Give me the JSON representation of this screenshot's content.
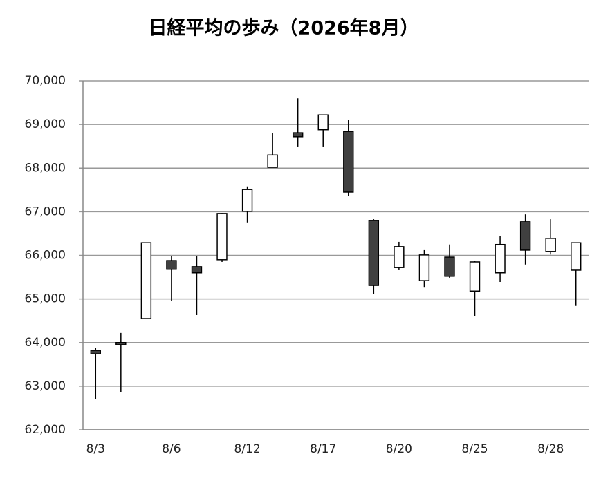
{
  "chart_data": {
    "type": "candlestick",
    "title": "日経平均の歩み（2026年8月）",
    "categories": [
      "8/3",
      null,
      null,
      "8/6",
      null,
      null,
      "8/12",
      null,
      null,
      "8/17",
      null,
      null,
      "8/20",
      null,
      null,
      "8/25",
      null,
      null,
      "8/28",
      null
    ],
    "open": [
      63820,
      64000,
      64550,
      65880,
      65740,
      65900,
      67010,
      68020,
      68810,
      68880,
      68840,
      66800,
      65720,
      65420,
      65960,
      65180,
      65600,
      66770,
      66090,
      65660
    ],
    "high": [
      63870,
      64220,
      66290,
      65990,
      65980,
      66970,
      67580,
      68800,
      69600,
      69220,
      69100,
      66830,
      66310,
      66120,
      66250,
      65880,
      66440,
      66940,
      66830,
      66290
    ],
    "low": [
      62700,
      62860,
      64550,
      64950,
      64630,
      65850,
      66740,
      68020,
      68480,
      68480,
      67370,
      65120,
      65660,
      65260,
      65470,
      64600,
      65390,
      65790,
      66020,
      64840
    ],
    "close": [
      63740,
      63950,
      66290,
      65680,
      65600,
      66960,
      67510,
      68300,
      68720,
      69220,
      67450,
      65310,
      66200,
      66010,
      65520,
      65850,
      66250,
      66120,
      66390,
      66290
    ],
    "up_color": "#ffffff",
    "down_color": "#404040",
    "ylim": [
      62000,
      70000
    ],
    "yticks": [
      {
        "value": 62000,
        "label": "62,000"
      },
      {
        "value": 63000,
        "label": "63,000"
      },
      {
        "value": 64000,
        "label": "64,000"
      },
      {
        "value": 65000,
        "label": "65,000"
      },
      {
        "value": 66000,
        "label": "66,000"
      },
      {
        "value": 67000,
        "label": "67,000"
      },
      {
        "value": 68000,
        "label": "68,000"
      },
      {
        "value": 69000,
        "label": "69,000"
      },
      {
        "value": 70000,
        "label": "70,000"
      }
    ],
    "grid": true
  }
}
